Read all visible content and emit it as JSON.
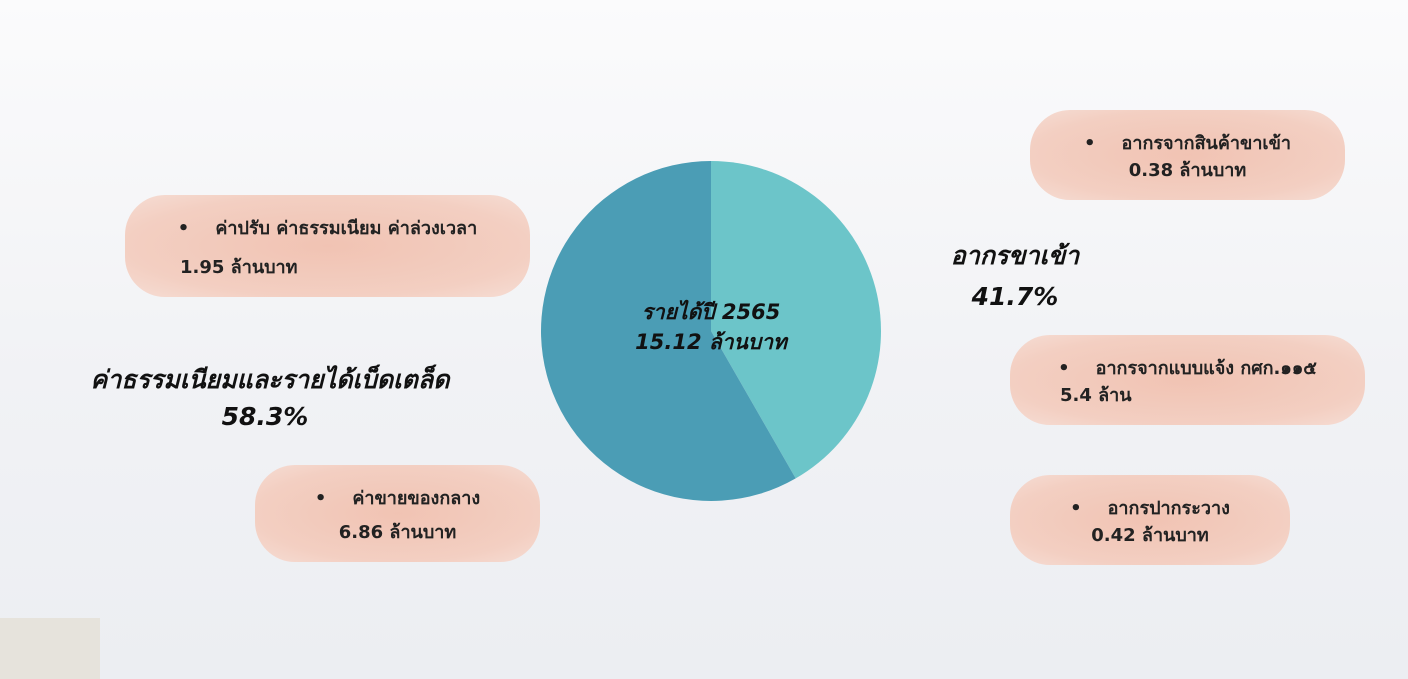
{
  "chart_data": {
    "type": "pie",
    "center_text": [
      "รายได้ปี 2565",
      "15.12  ล้านบาท"
    ],
    "categories": [
      "อากรขาเข้า",
      "ค่าธรรมเนียมและรายได้เบ็ดเตล็ด"
    ],
    "values": [
      41.7,
      58.3
    ],
    "value_labels": [
      "41.7%",
      "58.3%"
    ],
    "colors": [
      "#6cc5c9",
      "#4b9db5"
    ],
    "annotations": [
      {
        "label": "ค่าปรับ ค่าธรรมเนียม ค่าล่วงเวลา",
        "amount": "1.95 ล้านบาท"
      },
      {
        "label": "ค่าขายของกลาง",
        "amount": "6.86 ล้านบาท"
      },
      {
        "label": "อากรจากสินค้าขาเข้า",
        "amount": "0.38 ล้านบาท"
      },
      {
        "label": "อากรจากแบบแจ้ง กศก.๑๑๕",
        "amount": "5.4 ล้าน"
      },
      {
        "label": "อากรปากระวาง",
        "amount": "0.42 ล้านบาท"
      }
    ]
  }
}
